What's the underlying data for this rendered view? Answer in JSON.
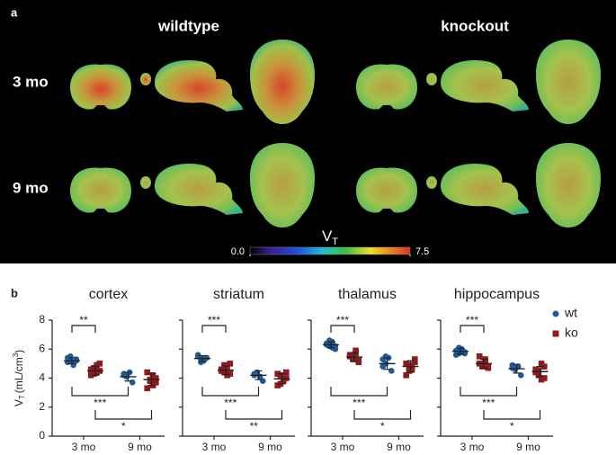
{
  "panel_a": {
    "label": "a",
    "columns": [
      "wildtype",
      "knockout"
    ],
    "rows": [
      "3 mo",
      "9 mo"
    ],
    "colorbar": {
      "label": {
        "main": "V",
        "sub": "T"
      },
      "clim": [
        0,
        7.5
      ],
      "ticks": [
        {
          "value": 0,
          "label": "0.0"
        },
        {
          "value": 7.5,
          "label": "7.5"
        }
      ]
    }
  },
  "panel_b_label": "b",
  "legend": [
    {
      "name": "wt",
      "color": "#1f5b99",
      "marker": "circle"
    },
    {
      "name": "ko",
      "color": "#8e1b1e",
      "marker": "square"
    }
  ],
  "chart_data": [
    {
      "type": "dot",
      "title": "cortex",
      "categories": [
        "3 mo",
        "9 mo"
      ],
      "ylim": [
        0,
        8
      ],
      "yticks": [
        0,
        2,
        4,
        6,
        8
      ],
      "ytick_labels": true,
      "ylabel": {
        "main": "V",
        "sub": "T",
        "unit": "(mL/cm",
        "sup": "3",
        "close": ")"
      },
      "series": [
        {
          "points": [
            [
              5.4,
              5.2,
              5.0,
              5.3,
              5.1,
              5.5,
              4.9,
              5.2
            ],
            [
              4.3,
              4.1,
              4.4,
              3.7,
              4.2
            ]
          ],
          "mean": [
            5.2,
            4.1
          ],
          "sd": [
            0.2,
            0.3
          ]
        },
        {
          "points": [
            [
              4.6,
              4.3,
              4.9,
              4.5,
              4.2,
              4.7,
              4.4,
              5.0
            ],
            [
              4.4,
              3.8,
              3.5,
              4.0,
              3.3,
              3.9,
              4.2,
              3.7
            ]
          ],
          "mean": [
            4.5,
            3.9
          ],
          "sd": [
            0.3,
            0.4
          ]
        }
      ],
      "brackets": [
        "**",
        "***",
        "*"
      ]
    },
    {
      "type": "dot",
      "title": "striatum",
      "categories": [
        "3 mo",
        "9 mo"
      ],
      "ylim": [
        0,
        8
      ],
      "yticks": [
        0,
        2,
        4,
        6,
        8
      ],
      "ytick_labels": false,
      "series": [
        {
          "points": [
            [
              5.5,
              5.3,
              5.2,
              5.4,
              5.6,
              5.1,
              5.3,
              5.4
            ],
            [
              4.3,
              4.4,
              4.1,
              3.8,
              4.2
            ]
          ],
          "mean": [
            5.35,
            4.2
          ],
          "sd": [
            0.2,
            0.3
          ]
        },
        {
          "points": [
            [
              4.6,
              4.4,
              4.8,
              4.3,
              4.5,
              4.9,
              4.2,
              5.0
            ],
            [
              4.3,
              3.6,
              3.9,
              4.0,
              3.5,
              4.2,
              3.8,
              4.4
            ]
          ],
          "mean": [
            4.55,
            3.95
          ],
          "sd": [
            0.3,
            0.35
          ]
        }
      ],
      "brackets": [
        "***",
        "***",
        "**"
      ]
    },
    {
      "type": "dot",
      "title": "thalamus",
      "categories": [
        "3 mo",
        "9 mo"
      ],
      "ylim": [
        0,
        8
      ],
      "yticks": [
        0,
        2,
        4,
        6,
        8
      ],
      "ytick_labels": false,
      "series": [
        {
          "points": [
            [
              6.4,
              6.2,
              6.5,
              6.0,
              6.3,
              6.6,
              6.1,
              6.2
            ],
            [
              5.3,
              5.0,
              5.4,
              4.5,
              4.8,
              5.5
            ]
          ],
          "mean": [
            6.3,
            5.0
          ],
          "sd": [
            0.2,
            0.4
          ]
        },
        {
          "points": [
            [
              5.6,
              5.3,
              5.9,
              5.2,
              5.5,
              5.4,
              5.7,
              5.1
            ],
            [
              5.0,
              4.5,
              4.8,
              5.3,
              4.2,
              4.9,
              4.6,
              5.1
            ]
          ],
          "mean": [
            5.45,
            4.8
          ],
          "sd": [
            0.3,
            0.4
          ]
        }
      ],
      "brackets": [
        "***",
        "***",
        "*"
      ]
    },
    {
      "type": "dot",
      "title": "hippocampus",
      "categories": [
        "3 mo",
        "9 mo"
      ],
      "ylim": [
        0,
        8
      ],
      "yticks": [
        0,
        2,
        4,
        6,
        8
      ],
      "ytick_labels": false,
      "series": [
        {
          "points": [
            [
              5.9,
              5.7,
              6.0,
              5.8,
              5.6,
              6.1,
              5.8,
              5.7
            ],
            [
              4.9,
              4.6,
              4.8,
              4.2,
              4.7
            ]
          ],
          "mean": [
            5.85,
            4.65
          ],
          "sd": [
            0.2,
            0.3
          ]
        },
        {
          "points": [
            [
              5.0,
              4.8,
              5.3,
              4.7,
              5.5,
              4.9,
              5.1,
              4.8
            ],
            [
              4.6,
              4.2,
              5.0,
              4.0,
              4.4,
              4.5,
              3.9,
              4.8
            ]
          ],
          "mean": [
            5.0,
            4.45
          ],
          "sd": [
            0.3,
            0.35
          ]
        }
      ],
      "brackets": [
        "***",
        "***",
        "*"
      ]
    }
  ]
}
